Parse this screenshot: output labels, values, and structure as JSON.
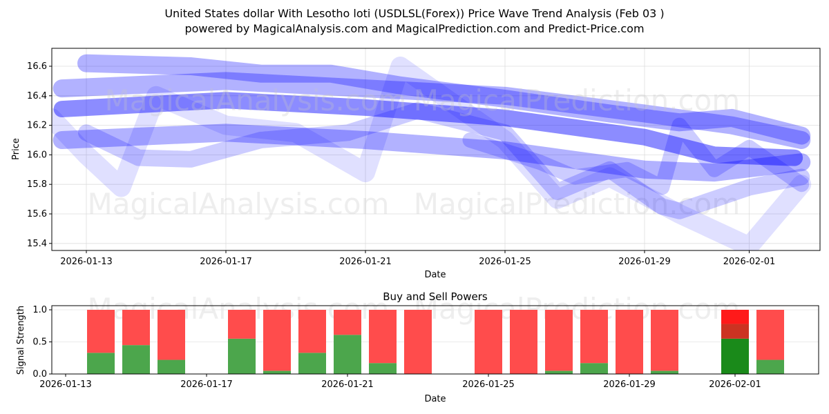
{
  "title_line1": "United States dollar With Lesotho loti (USDLSL(Forex)) Price Wave Trend Analysis (Feb 03 )",
  "title_line2": "powered by MagicalAnalysis.com and MagicalPrediction.com and Predict-Price.com",
  "watermarks": [
    "MagicalAnalysis.com",
    "MagicalPrediction.com"
  ],
  "colors": {
    "wave": "#0000ff",
    "buy": "#4ca64c",
    "sell": "#ff4c4c",
    "buy_strong": "#1a8a1a",
    "sell_mid": "#cc3322",
    "sell_strong": "#ff1a1a"
  },
  "chart_data": [
    {
      "type": "line",
      "title": "",
      "xlabel": "Date",
      "ylabel": "Price",
      "xlim": [
        "2026-01-12",
        "2026-02-03"
      ],
      "ylim": [
        15.35,
        16.72
      ],
      "x_ticks": [
        "2026-01-13",
        "2026-01-17",
        "2026-01-21",
        "2026-01-25",
        "2026-01-29",
        "2026-02-01"
      ],
      "y_ticks": [
        "15.4",
        "15.6",
        "15.8",
        "16.0",
        "16.2",
        "16.4",
        "16.6"
      ],
      "grid": true,
      "series_x_unit": "days since 2026-01-12",
      "series": [
        {
          "name": "wave-central",
          "opacity": 0.45,
          "width": 24,
          "x": [
            0.3,
            5,
            9,
            13,
            17,
            19,
            21.3
          ],
          "y": [
            16.31,
            16.37,
            16.32,
            16.25,
            16.12,
            16.0,
            15.98
          ]
        },
        {
          "name": "wave-upper",
          "opacity": 0.3,
          "width": 26,
          "x": [
            0.3,
            5,
            9,
            13,
            17,
            19.5,
            21.5
          ],
          "y": [
            16.45,
            16.5,
            16.45,
            16.4,
            16.28,
            16.2,
            16.1
          ]
        },
        {
          "name": "wave-top",
          "opacity": 0.3,
          "width": 26,
          "x": [
            1,
            4,
            6,
            8,
            10,
            13,
            16,
            18,
            19.5,
            21.5
          ],
          "y": [
            16.62,
            16.6,
            16.55,
            16.55,
            16.47,
            16.38,
            16.28,
            16.22,
            16.25,
            16.13
          ]
        },
        {
          "name": "wave-lower",
          "opacity": 0.3,
          "width": 26,
          "x": [
            0.3,
            5,
            9,
            13,
            17,
            19,
            21.5
          ],
          "y": [
            16.1,
            16.15,
            16.1,
            16.03,
            15.9,
            15.88,
            15.95
          ]
        },
        {
          "name": "wave-zigzag-1",
          "opacity": 0.12,
          "width": 28,
          "x": [
            0,
            1,
            2,
            3,
            5,
            7,
            9,
            10,
            13,
            14.5,
            16,
            18,
            20,
            21.5
          ],
          "y": [
            16.25,
            16.0,
            15.78,
            16.4,
            16.2,
            16.15,
            15.88,
            16.6,
            16.1,
            15.7,
            15.85,
            15.6,
            15.38,
            15.8
          ]
        },
        {
          "name": "wave-zigzag-2",
          "opacity": 0.2,
          "width": 24,
          "x": [
            1,
            2.5,
            4,
            6,
            8.5,
            10.5,
            13,
            14.5,
            16,
            17.5,
            18,
            20,
            21.5
          ],
          "y": [
            16.15,
            15.98,
            15.97,
            16.1,
            16.15,
            16.3,
            16.15,
            15.75,
            15.9,
            15.65,
            15.62,
            15.78,
            15.85
          ]
        },
        {
          "name": "wave-zigzag-3",
          "opacity": 0.2,
          "width": 22,
          "x": [
            12,
            14,
            15,
            16.5,
            17.5,
            18,
            19,
            20,
            21.5
          ],
          "y": [
            16.1,
            15.95,
            15.85,
            15.9,
            15.78,
            16.2,
            15.9,
            16.05,
            15.8
          ]
        }
      ]
    },
    {
      "type": "bar",
      "title": "Buy and Sell Powers",
      "xlabel": "Date",
      "ylabel": "Signal Strength",
      "ylim": [
        0,
        1.05
      ],
      "x_ticks": [
        "2026-01-13",
        "2026-01-17",
        "2026-01-21",
        "2026-01-25",
        "2026-01-29",
        "2026-02-01"
      ],
      "y_ticks": [
        "0.0",
        "0.5",
        "1.0"
      ],
      "categories": [
        "2026-01-14",
        "2026-01-15",
        "2026-01-16",
        "2026-01-18",
        "2026-01-19",
        "2026-01-20",
        "2026-01-21",
        "2026-01-22",
        "2026-01-23",
        "2026-01-25",
        "2026-01-26",
        "2026-01-27",
        "2026-01-28",
        "2026-01-29",
        "2026-01-30",
        "2026-02-01",
        "2026-02-02"
      ],
      "series": [
        {
          "name": "Buy",
          "values": [
            0.33,
            0.45,
            0.22,
            0.55,
            0.05,
            0.33,
            0.61,
            0.17,
            0.0,
            0.0,
            0.0,
            0.05,
            0.17,
            0.0,
            0.05,
            0.55,
            0.22
          ]
        },
        {
          "name": "Sell",
          "values": [
            0.67,
            0.55,
            0.78,
            0.45,
            0.95,
            0.67,
            0.39,
            0.83,
            1.0,
            1.0,
            1.0,
            0.95,
            0.83,
            1.0,
            0.95,
            0.45,
            0.78
          ]
        }
      ],
      "highlight": {
        "category": "2026-02-01",
        "sell_split": [
          0.23,
          0.22
        ]
      }
    }
  ]
}
